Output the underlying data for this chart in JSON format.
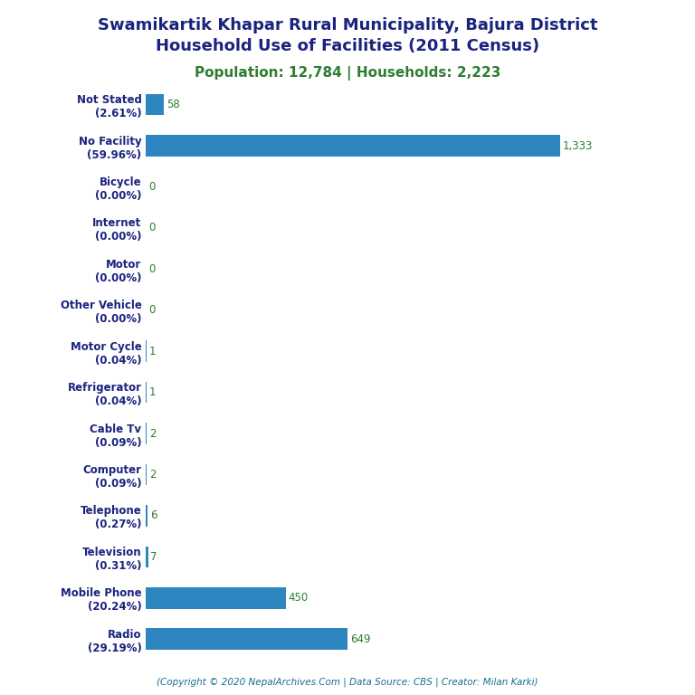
{
  "title_line1": "Swamikartik Khapar Rural Municipality, Bajura District",
  "title_line2": "Household Use of Facilities (2011 Census)",
  "subtitle": "Population: 12,784 | Households: 2,223",
  "footer": "(Copyright © 2020 NepalArchives.Com | Data Source: CBS | Creator: Milan Karki)",
  "categories": [
    "Not Stated\n(2.61%)",
    "No Facility\n(59.96%)",
    "Bicycle\n(0.00%)",
    "Internet\n(0.00%)",
    "Motor\n(0.00%)",
    "Other Vehicle\n(0.00%)",
    "Motor Cycle\n(0.04%)",
    "Refrigerator\n(0.04%)",
    "Cable Tv\n(0.09%)",
    "Computer\n(0.09%)",
    "Telephone\n(0.27%)",
    "Television\n(0.31%)",
    "Mobile Phone\n(20.24%)",
    "Radio\n(29.19%)"
  ],
  "values": [
    58,
    1333,
    0,
    0,
    0,
    0,
    1,
    1,
    2,
    2,
    6,
    7,
    450,
    649
  ],
  "bar_color": "#2e86c1",
  "title_color": "#1a237e",
  "subtitle_color": "#2e7d32",
  "label_color": "#2e7d32",
  "footer_color": "#1a6e8e",
  "background_color": "#ffffff",
  "xlim": [
    0,
    1500
  ]
}
